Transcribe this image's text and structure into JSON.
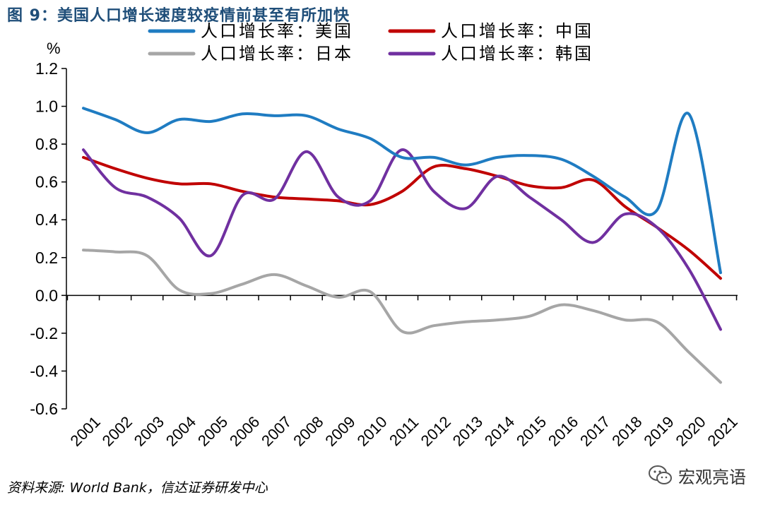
{
  "title": "图 9：美国人口增长速度较疫情前甚至有所加快",
  "source": "资料来源: World Bank，信达证券研发中心",
  "watermark": {
    "text": "宏观亮语",
    "icon": "wechat-icon"
  },
  "chart_data": {
    "type": "line",
    "title": "图 9：美国人口增长速度较疫情前甚至有所加快",
    "ylabel": "%",
    "xlabel": "",
    "ylim": [
      -0.6,
      1.2
    ],
    "yticks": [
      "1.2",
      "1.0",
      "0.8",
      "0.6",
      "0.4",
      "0.2",
      "0.0",
      "-0.2",
      "-0.4",
      "-0.6"
    ],
    "categories": [
      "2001",
      "2002",
      "2003",
      "2004",
      "2005",
      "2006",
      "2007",
      "2008",
      "2009",
      "2010",
      "2011",
      "2012",
      "2013",
      "2014",
      "2015",
      "2016",
      "2017",
      "2018",
      "2019",
      "2020",
      "2021"
    ],
    "legend_position": "top",
    "series": [
      {
        "name": "人口增长率：美国",
        "color": "#1f7cc2",
        "values": [
          0.99,
          0.93,
          0.86,
          0.93,
          0.92,
          0.96,
          0.95,
          0.95,
          0.88,
          0.83,
          0.73,
          0.73,
          0.69,
          0.73,
          0.74,
          0.72,
          0.63,
          0.52,
          0.45,
          0.96,
          0.12
        ]
      },
      {
        "name": "人口增长率：中国",
        "color": "#c00000",
        "values": [
          0.73,
          0.67,
          0.62,
          0.59,
          0.59,
          0.55,
          0.52,
          0.51,
          0.5,
          0.48,
          0.55,
          0.68,
          0.67,
          0.63,
          0.58,
          0.57,
          0.61,
          0.47,
          0.36,
          0.24,
          0.09
        ]
      },
      {
        "name": "人口增长率：日本",
        "color": "#a6a6a6",
        "values": [
          0.24,
          0.23,
          0.21,
          0.03,
          0.01,
          0.06,
          0.11,
          0.05,
          -0.01,
          0.02,
          -0.19,
          -0.16,
          -0.14,
          -0.13,
          -0.11,
          -0.05,
          -0.08,
          -0.13,
          -0.14,
          -0.3,
          -0.46
        ]
      },
      {
        "name": "人口增长率：韩国",
        "color": "#7030a0",
        "values": [
          0.77,
          0.57,
          0.52,
          0.41,
          0.21,
          0.53,
          0.51,
          0.76,
          0.52,
          0.5,
          0.77,
          0.55,
          0.46,
          0.63,
          0.52,
          0.4,
          0.28,
          0.43,
          0.36,
          0.14,
          -0.18
        ]
      }
    ]
  }
}
